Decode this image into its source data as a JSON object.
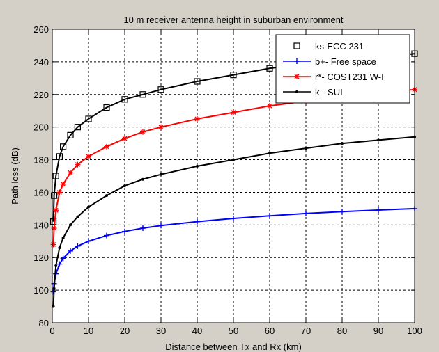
{
  "chart_data": {
    "type": "line",
    "title": "10 m receiver antenna height in suburban environment",
    "xlabel": "Distance between Tx and Rx (km)",
    "ylabel": "Path loss (dB)",
    "xlim": [
      0,
      100
    ],
    "ylim": [
      80,
      260
    ],
    "xticks": [
      0,
      10,
      20,
      30,
      40,
      50,
      60,
      70,
      80,
      90,
      100
    ],
    "yticks": [
      80,
      100,
      120,
      140,
      160,
      180,
      200,
      220,
      240,
      260
    ],
    "grid": true,
    "legend_position": "top-right",
    "x_samples": [
      0.3,
      0.5,
      1,
      2,
      3,
      5,
      7,
      10,
      15,
      20,
      25,
      30,
      40,
      50,
      60,
      70,
      80,
      90,
      100
    ],
    "series": [
      {
        "name": "ks-ECC 231",
        "color": "#000000",
        "marker": "square",
        "values": [
          142,
          158,
          170,
          182,
          188,
          195,
          200,
          205,
          212,
          217,
          220,
          223,
          228,
          232,
          236,
          239,
          241,
          243,
          245
        ]
      },
      {
        "name": "b+- Free space",
        "color": "#0000ff",
        "marker": "plus",
        "values": [
          99,
          104,
          110,
          116,
          119.5,
          124,
          127,
          130,
          133.5,
          136,
          138,
          139.6,
          142,
          144,
          145.6,
          147,
          148.1,
          149.1,
          150
        ]
      },
      {
        "name": "r*- COST231 W-I",
        "color": "#ff0000",
        "marker": "star",
        "values": [
          128,
          138,
          149,
          160,
          165,
          172,
          177,
          182,
          188,
          193,
          197,
          200,
          205,
          209,
          213,
          216,
          219,
          221,
          223
        ]
      },
      {
        "name": "k - SUI",
        "color": "#000000",
        "marker": "dot",
        "values": [
          90,
          101,
          115,
          126,
          132,
          140,
          145,
          151,
          158,
          164,
          168,
          171,
          176,
          180,
          184,
          187,
          190,
          192,
          194
        ]
      }
    ]
  }
}
